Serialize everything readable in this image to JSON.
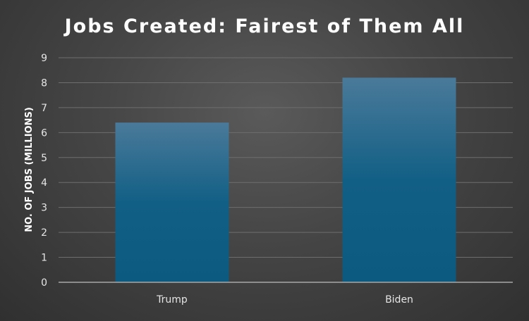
{
  "chart_data": {
    "type": "bar",
    "title": "Jobs Created: Fairest of Them All",
    "xlabel": "",
    "ylabel": "NO. OF JOBS (MILLIONS)",
    "categories": [
      "Trump",
      "Biden"
    ],
    "values": [
      6.4,
      8.2
    ],
    "ylim": [
      0,
      9
    ],
    "yticks": [
      0,
      1,
      2,
      3,
      4,
      5,
      6,
      7,
      8,
      9
    ],
    "grid": true,
    "legend": "none",
    "colors": {
      "bar_top": "#4a7a9a",
      "bar_bottom": "#0c5a80",
      "background": "#454545"
    }
  }
}
